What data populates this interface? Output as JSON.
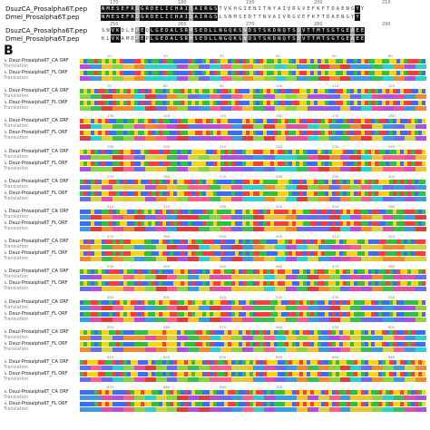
{
  "panel_a": {
    "row1_label": "DsuzCA_Prosalpha6T.pep",
    "row2_label": "Dmel_Prosalpha6T.pep",
    "row3_label": "DsuzCA_Prosalpha6T.pep",
    "row4_label": "Dmel_Prosalpha6T.pep",
    "row1_seq": "NMESEFRDGRDELICHAIQAIRGSTVKHGIENITNYAIVRGVEFKFTDAENGYY",
    "row2_seq": "NMESEFRDGRDELICHAIQAIRGSLSNMSEDTTNVAIVRGVEFKFTDAENGYY",
    "row3_seq": "SNVKDLEPEQLGEDALSRMSEDLLNGQKSNDSTSKDNQTSDVTTMTSGTGEAEE",
    "row4_seq": "KLVKAMDPEPLGEDALSRMSEDLLNGQKSNDSTSKDNQTSDVTTMTSGTGEAEE",
    "ticks_top": [
      "170",
      "180",
      "190",
      "200",
      "210"
    ],
    "ticks_bottom": [
      "250",
      "260",
      "270",
      "280",
      "290"
    ]
  },
  "panel_b": {
    "label": "B",
    "row_ca": "Dsuz-Prosalpha6T_CA ORF",
    "row_fl": "Dsuz-Prosalpha6T_FL ORF",
    "row_translation": "Translation",
    "ruler_labels": [
      "10",
      "20",
      "30",
      "40",
      "50",
      "60",
      "70",
      "80",
      "90",
      "100",
      "110",
      "120",
      "130",
      "140",
      "150",
      "160",
      "170",
      "180",
      "190",
      "200",
      "210",
      "220",
      "230",
      "240",
      "250",
      "260",
      "270",
      "280",
      "290",
      "300",
      "310",
      "320",
      "330",
      "340",
      "350",
      "360",
      "370",
      "380",
      "390",
      "400",
      "410",
      "420",
      "430",
      "440",
      "450",
      "460",
      "470",
      "480",
      "490",
      "500",
      "510",
      "520",
      "530",
      "540",
      "550",
      "560",
      "570",
      "580",
      "590",
      "600",
      "610",
      "620",
      "630",
      "640",
      "650",
      "660",
      "670",
      "680",
      "690",
      "700"
    ]
  }
}
